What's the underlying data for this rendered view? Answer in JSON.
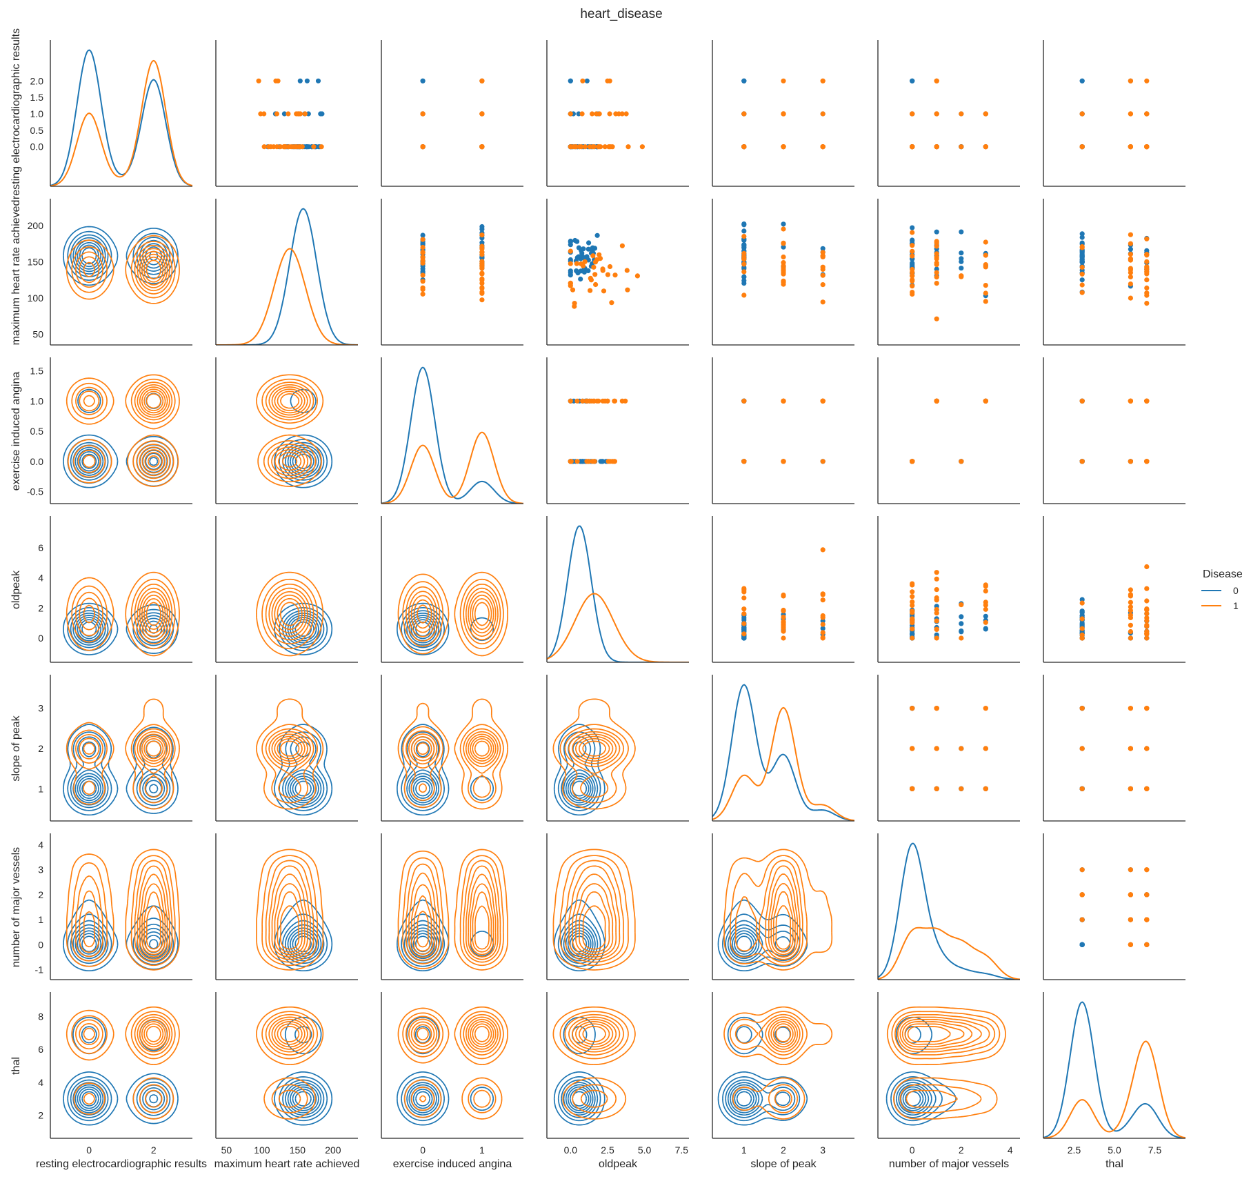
{
  "chart_data": {
    "type": "pairplot",
    "title": "heart_disease",
    "hue": {
      "title": "Disease",
      "levels": [
        {
          "label": "0",
          "color": "#1f77b4"
        },
        {
          "label": "1",
          "color": "#ff7f0e"
        }
      ]
    },
    "diagonal": "kde",
    "lower": "kde",
    "upper": "scatter",
    "variables": [
      {
        "name": "resting electrocardiographic results",
        "lim": [
          -1.2,
          3.2
        ],
        "xticks": [
          0,
          2
        ],
        "yticks": [
          0.0,
          0.5,
          1.0,
          1.5,
          2.0
        ],
        "yfmt": 1,
        "groups": {
          "0": {
            "values": [
              0,
              1,
              2
            ],
            "weights": [
              0.55,
              0.02,
              0.43
            ]
          },
          "1": {
            "values": [
              0,
              1,
              2
            ],
            "weights": [
              0.36,
              0.02,
              0.62
            ]
          }
        }
      },
      {
        "name": "maximum heart rate achieved",
        "lim": [
          35,
          235
        ],
        "xticks": [
          50,
          100,
          150,
          200
        ],
        "yticks": [
          50,
          100,
          150,
          200
        ],
        "yfmt": 0,
        "groups": {
          "0": {
            "mean": 158,
            "sd": 19,
            "min": 96,
            "max": 202
          },
          "1": {
            "mean": 139,
            "sd": 22,
            "min": 71,
            "max": 195
          }
        }
      },
      {
        "name": "exercise induced angina",
        "lim": [
          -0.7,
          1.7
        ],
        "xticks": [
          0,
          1
        ],
        "yticks": [
          -0.5,
          0.0,
          0.5,
          1.0,
          1.5
        ],
        "yfmt": 1,
        "groups": {
          "0": {
            "values": [
              0,
              1
            ],
            "weights": [
              0.86,
              0.14
            ]
          },
          "1": {
            "values": [
              0,
              1
            ],
            "weights": [
              0.45,
              0.55
            ]
          }
        }
      },
      {
        "name": "oldpeak",
        "lim": [
          -1.6,
          8.0
        ],
        "xticks": [
          0.0,
          2.5,
          5.0,
          7.5
        ],
        "yticks": [
          0,
          2,
          4,
          6
        ],
        "yfmt": 0,
        "groups": {
          "0": {
            "mean": 0.6,
            "sd": 0.8,
            "min": 0,
            "max": 4.2
          },
          "1": {
            "mean": 1.6,
            "sd": 1.3,
            "min": 0,
            "max": 6.2
          }
        }
      },
      {
        "name": "slope of peak",
        "lim": [
          0.2,
          3.8
        ],
        "xticks": [
          1,
          2,
          3
        ],
        "yticks": [
          1,
          2,
          3
        ],
        "yfmt": 0,
        "groups": {
          "0": {
            "values": [
              1,
              2,
              3
            ],
            "weights": [
              0.64,
              0.31,
              0.05
            ]
          },
          "1": {
            "values": [
              1,
              2,
              3
            ],
            "weights": [
              0.26,
              0.65,
              0.09
            ]
          }
        }
      },
      {
        "name": "number of major vessels",
        "lim": [
          -1.4,
          4.4
        ],
        "xticks": [
          0,
          2,
          4
        ],
        "yticks": [
          -1,
          0,
          1,
          2,
          3,
          4
        ],
        "yfmt": 0,
        "groups": {
          "0": {
            "values": [
              0,
              1,
              2,
              3
            ],
            "weights": [
              0.79,
              0.13,
              0.05,
              0.03
            ]
          },
          "1": {
            "values": [
              0,
              1,
              2,
              3
            ],
            "weights": [
              0.32,
              0.3,
              0.23,
              0.15
            ]
          }
        }
      },
      {
        "name": "thal",
        "lim": [
          0.6,
          9.4
        ],
        "xticks": [
          2.5,
          5.0,
          7.5
        ],
        "yticks": [
          2,
          4,
          6,
          8
        ],
        "yfmt": 0,
        "groups": {
          "0": {
            "values": [
              3,
              6,
              7
            ],
            "weights": [
              0.78,
              0.04,
              0.18
            ]
          },
          "1": {
            "values": [
              3,
              6,
              7
            ],
            "weights": [
              0.27,
              0.09,
              0.64
            ]
          }
        }
      }
    ],
    "scatter_points": {
      "0": [
        [
          2,
          1,
          2,
          1,
          1,
          2,
          2,
          3,
          2,
          1
        ],
        [
          0,
          2,
          1,
          3,
          2,
          2,
          1,
          4,
          3,
          2
        ],
        [
          2,
          2,
          1,
          0,
          2,
          0,
          0,
          0,
          1,
          1
        ],
        [
          2,
          1,
          1,
          1,
          2,
          1,
          0,
          0,
          0,
          3
        ],
        [
          0,
          0,
          1,
          1,
          3,
          0,
          0,
          0,
          0,
          3
        ],
        [
          2,
          0,
          1,
          0,
          0,
          2,
          3,
          3,
          0,
          1
        ],
        [
          0,
          1,
          1,
          0,
          0,
          0,
          2,
          0,
          2,
          4
        ],
        [
          2,
          0,
          0,
          1,
          0,
          3,
          0,
          0,
          0,
          0
        ],
        [
          2,
          0,
          3,
          0,
          0,
          1,
          0,
          0,
          0,
          1
        ],
        [
          1,
          1,
          0,
          0,
          1,
          0,
          0,
          2,
          1,
          0
        ],
        [
          2,
          2,
          0,
          1,
          0,
          3,
          2,
          0,
          0,
          0
        ],
        [
          0,
          1,
          1,
          0,
          0,
          1,
          0,
          0,
          0,
          3
        ],
        [
          0,
          1,
          1,
          0,
          0,
          0,
          0,
          0,
          1,
          4
        ],
        [
          0,
          0,
          1,
          0,
          0,
          0,
          1,
          3,
          1,
          0
        ],
        [
          2,
          0,
          1,
          0,
          0,
          0,
          0,
          0,
          3,
          1
        ],
        [
          2,
          2,
          0,
          2,
          0,
          0,
          1,
          0,
          2,
          0
        ],
        [
          0,
          0,
          0,
          0,
          0,
          3,
          2,
          1,
          0,
          0
        ],
        [
          0,
          0,
          1,
          1,
          0,
          0,
          0,
          0,
          1,
          1
        ],
        [
          0,
          0,
          0,
          0,
          0,
          0,
          0,
          0,
          0,
          2
        ],
        [
          0,
          0,
          0,
          0,
          0,
          2,
          0,
          0,
          0,
          3
        ],
        [
          0,
          1,
          1,
          0,
          0,
          0,
          0,
          2,
          0,
          3
        ],
        [
          0,
          0,
          2,
          2,
          0,
          0,
          0,
          1,
          0,
          0
        ],
        [
          0,
          3,
          1,
          0,
          0,
          0,
          0,
          0,
          0,
          3
        ],
        [
          0,
          1,
          1,
          0,
          0,
          2,
          2,
          1,
          2,
          0
        ],
        [
          0,
          0,
          0,
          0,
          0,
          1,
          0,
          0,
          2,
          1
        ],
        [
          0,
          0,
          0,
          0,
          0,
          0,
          0,
          0,
          0,
          0
        ],
        [
          0,
          0,
          0,
          0,
          0,
          0,
          0,
          2,
          0,
          0
        ],
        [
          0,
          1,
          1,
          0,
          0,
          0,
          2,
          0,
          0,
          3
        ],
        [
          0,
          0,
          0,
          0,
          0,
          0,
          0,
          0,
          0,
          2
        ],
        [
          0,
          0,
          0,
          1,
          0,
          0,
          0,
          0,
          0,
          0
        ],
        [
          0,
          2,
          1,
          2,
          0,
          0,
          0,
          1,
          2,
          0
        ],
        [
          0,
          2,
          2,
          3,
          0,
          0,
          1,
          0,
          0,
          0
        ],
        [
          0,
          1,
          2,
          0,
          0,
          3,
          0,
          0,
          0,
          0
        ],
        [
          0,
          0,
          0,
          0,
          0,
          1,
          0,
          2,
          1,
          0
        ],
        [
          0,
          0,
          0,
          3,
          0,
          0,
          0,
          3,
          0,
          0
        ],
        [
          0,
          0,
          1,
          0,
          1,
          0,
          1,
          0,
          1,
          0
        ],
        [
          0,
          1,
          2,
          0,
          0,
          0,
          0,
          0,
          0,
          0
        ],
        [
          0,
          0,
          1,
          0,
          0,
          0,
          0,
          2,
          1,
          0
        ],
        [
          0,
          0,
          0,
          0,
          0,
          1,
          0,
          0,
          1,
          0
        ],
        [
          0,
          0,
          0,
          0,
          0,
          1,
          0,
          1,
          0,
          1
        ],
        [
          0,
          0,
          0,
          0,
          0,
          0,
          0,
          0,
          1,
          1
        ],
        [
          0,
          0,
          0,
          0,
          0,
          0,
          0,
          2,
          0,
          0
        ]
      ],
      "1": [
        [
          2,
          1,
          2,
          0,
          2,
          1,
          2,
          3,
          1,
          1
        ],
        [
          0,
          1,
          3,
          1,
          0,
          3,
          1,
          4,
          2,
          2
        ],
        [
          1,
          2,
          1,
          2,
          2,
          1,
          1,
          0,
          2,
          0
        ],
        [
          2,
          2,
          1,
          0,
          2,
          3,
          0,
          0,
          1,
          1
        ],
        [
          2,
          2,
          1,
          0,
          1,
          3,
          3,
          1,
          2,
          1
        ],
        [
          2,
          0,
          0,
          1,
          2,
          1,
          2,
          2,
          1,
          1
        ],
        [
          2,
          1,
          1,
          1,
          0,
          0,
          2,
          3,
          1,
          4
        ],
        [
          2,
          1,
          1,
          0,
          1,
          3,
          1,
          0,
          3,
          1
        ],
        [
          0,
          2,
          1,
          3,
          1,
          0,
          0,
          1,
          2,
          0
        ],
        [
          1,
          2,
          0,
          0,
          2,
          0,
          2,
          3,
          3,
          0
        ],
        [
          2,
          2,
          1,
          3,
          1,
          2,
          1,
          3,
          2,
          3
        ],
        [
          0,
          1,
          1,
          1,
          1,
          3,
          0,
          2,
          2,
          0
        ],
        [
          2,
          1,
          0,
          1,
          1,
          1,
          1,
          1,
          1,
          4
        ],
        [
          2,
          1,
          0,
          1,
          1,
          0,
          0,
          2,
          3,
          0
        ],
        [
          2,
          2,
          0,
          0,
          0,
          1,
          2,
          1,
          2,
          3
        ],
        [
          2,
          3,
          0,
          0,
          0,
          0,
          2,
          0,
          1,
          1
        ],
        [
          2,
          2,
          1,
          0,
          2,
          3,
          1,
          2,
          2,
          3
        ],
        [
          2,
          2,
          1,
          1,
          1,
          2,
          1,
          1,
          0,
          1
        ],
        [
          0,
          3,
          1,
          0,
          0,
          0,
          2,
          1,
          1,
          2
        ],
        [
          0,
          0,
          1,
          0,
          1,
          0,
          2,
          3,
          0,
          0
        ],
        [
          1,
          2,
          1,
          0,
          1,
          1,
          2,
          2,
          1,
          1
        ],
        [
          2,
          1,
          0,
          0,
          0,
          0,
          2,
          0,
          0,
          0
        ],
        [
          2,
          2,
          1,
          2,
          1,
          1,
          1,
          1,
          1,
          4
        ],
        [
          0,
          1,
          0,
          0,
          0,
          0,
          2,
          1,
          1,
          4
        ],
        [
          2,
          2,
          1,
          1,
          1,
          3,
          2,
          0,
          2,
          0
        ],
        [
          0,
          2,
          0,
          0,
          1,
          0,
          2,
          2,
          3,
          0
        ],
        [
          2,
          0,
          1,
          1,
          1,
          0,
          2,
          0,
          1,
          0
        ],
        [
          2,
          2,
          1,
          3,
          2,
          1,
          1,
          2,
          0,
          0
        ],
        [
          0,
          2,
          0,
          0,
          1,
          0,
          1,
          1,
          1,
          4
        ],
        [
          2,
          1,
          1,
          3,
          2,
          1,
          1,
          0,
          0,
          0
        ],
        [
          0,
          2,
          1,
          2,
          2,
          1,
          2,
          0,
          2,
          0
        ],
        [
          1,
          1,
          1,
          0,
          0,
          0,
          0,
          0,
          2,
          2
        ],
        [
          2,
          1,
          0,
          1,
          1,
          1,
          2,
          1,
          0,
          0
        ],
        [
          0,
          2,
          1,
          0,
          2,
          1,
          2,
          2,
          0,
          1
        ]
      ]
    }
  }
}
